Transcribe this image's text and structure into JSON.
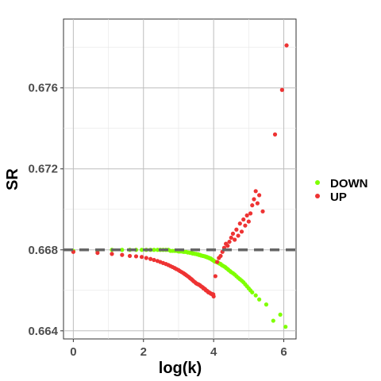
{
  "chart_data": {
    "type": "scatter",
    "xlabel": "log(k)",
    "ylabel": "SR",
    "xlim": [
      -0.28,
      6.35
    ],
    "ylim": [
      0.6636,
      0.6794
    ],
    "x_ticks": [
      0,
      2,
      4,
      6
    ],
    "x_tick_labels": [
      "0",
      "2",
      "4",
      "6"
    ],
    "y_ticks": [
      0.664,
      0.668,
      0.672,
      0.676
    ],
    "y_tick_labels": [
      "0.664",
      "0.668",
      "0.672",
      "0.676"
    ],
    "grid": true,
    "legend_position": "right",
    "reference_line": {
      "y": 0.668,
      "style": "dashed",
      "color": "#666666"
    },
    "series": [
      {
        "name": "DOWN",
        "color": "#7fff00",
        "points": [
          [
            0,
            0.66795
          ],
          [
            0.69,
            0.66795
          ],
          [
            1.1,
            0.668
          ],
          [
            1.39,
            0.668
          ],
          [
            1.61,
            0.668
          ],
          [
            1.79,
            0.668
          ],
          [
            1.95,
            0.668
          ],
          [
            2.08,
            0.668
          ],
          [
            2.2,
            0.668
          ],
          [
            2.3,
            0.668
          ],
          [
            2.4,
            0.668
          ],
          [
            2.48,
            0.668
          ],
          [
            2.56,
            0.668
          ],
          [
            2.64,
            0.668
          ],
          [
            2.71,
            0.668
          ],
          [
            2.77,
            0.66795
          ],
          [
            2.83,
            0.66795
          ],
          [
            2.89,
            0.66795
          ],
          [
            2.94,
            0.66795
          ],
          [
            3.0,
            0.66792
          ],
          [
            3.04,
            0.66792
          ],
          [
            3.09,
            0.66792
          ],
          [
            3.14,
            0.6679
          ],
          [
            3.18,
            0.6679
          ],
          [
            3.22,
            0.6679
          ],
          [
            3.26,
            0.66787
          ],
          [
            3.3,
            0.66787
          ],
          [
            3.33,
            0.66785
          ],
          [
            3.37,
            0.66785
          ],
          [
            3.4,
            0.66782
          ],
          [
            3.43,
            0.66782
          ],
          [
            3.47,
            0.6678
          ],
          [
            3.5,
            0.6678
          ],
          [
            3.53,
            0.66778
          ],
          [
            3.56,
            0.66778
          ],
          [
            3.58,
            0.66775
          ],
          [
            3.61,
            0.66775
          ],
          [
            3.64,
            0.66772
          ],
          [
            3.66,
            0.66772
          ],
          [
            3.69,
            0.6677
          ],
          [
            3.71,
            0.6677
          ],
          [
            3.74,
            0.66768
          ],
          [
            3.76,
            0.66768
          ],
          [
            3.78,
            0.66765
          ],
          [
            3.81,
            0.66765
          ],
          [
            3.83,
            0.66762
          ],
          [
            3.85,
            0.66762
          ],
          [
            3.87,
            0.6676
          ],
          [
            3.89,
            0.66758
          ],
          [
            3.91,
            0.66758
          ],
          [
            3.93,
            0.66755
          ],
          [
            3.95,
            0.66752
          ],
          [
            3.97,
            0.6675
          ],
          [
            3.99,
            0.66748
          ],
          [
            4.01,
            0.66745
          ],
          [
            4.04,
            0.66742
          ],
          [
            4.08,
            0.6674
          ],
          [
            4.11,
            0.66738
          ],
          [
            4.14,
            0.66735
          ],
          [
            4.17,
            0.66732
          ],
          [
            4.2,
            0.6673
          ],
          [
            4.23,
            0.66725
          ],
          [
            4.26,
            0.66722
          ],
          [
            4.3,
            0.66718
          ],
          [
            4.33,
            0.66715
          ],
          [
            4.36,
            0.6671
          ],
          [
            4.4,
            0.66705
          ],
          [
            4.43,
            0.667
          ],
          [
            4.47,
            0.66695
          ],
          [
            4.5,
            0.6669
          ],
          [
            4.55,
            0.66685
          ],
          [
            4.6,
            0.66678
          ],
          [
            4.65,
            0.6667
          ],
          [
            4.7,
            0.66662
          ],
          [
            4.75,
            0.66655
          ],
          [
            4.8,
            0.66648
          ],
          [
            4.85,
            0.6664
          ],
          [
            4.9,
            0.6663
          ],
          [
            4.95,
            0.6662
          ],
          [
            5.0,
            0.6661
          ],
          [
            5.05,
            0.666
          ],
          [
            5.1,
            0.6659
          ],
          [
            5.2,
            0.66575
          ],
          [
            5.3,
            0.66555
          ],
          [
            5.5,
            0.6653
          ],
          [
            5.7,
            0.6645
          ],
          [
            5.9,
            0.6648
          ],
          [
            6.05,
            0.6642
          ]
        ]
      },
      {
        "name": "UP",
        "color": "#ee3333",
        "points": [
          [
            0,
            0.6679
          ],
          [
            0.69,
            0.66785
          ],
          [
            1.1,
            0.6678
          ],
          [
            1.39,
            0.66775
          ],
          [
            1.61,
            0.6677
          ],
          [
            1.79,
            0.66768
          ],
          [
            1.95,
            0.66765
          ],
          [
            2.08,
            0.6676
          ],
          [
            2.2,
            0.66755
          ],
          [
            2.3,
            0.6675
          ],
          [
            2.4,
            0.66745
          ],
          [
            2.48,
            0.6674
          ],
          [
            2.56,
            0.66735
          ],
          [
            2.64,
            0.6673
          ],
          [
            2.71,
            0.66725
          ],
          [
            2.77,
            0.6672
          ],
          [
            2.83,
            0.66715
          ],
          [
            2.89,
            0.6671
          ],
          [
            2.94,
            0.66705
          ],
          [
            3.0,
            0.667
          ],
          [
            3.04,
            0.66695
          ],
          [
            3.09,
            0.6669
          ],
          [
            3.14,
            0.66685
          ],
          [
            3.18,
            0.6668
          ],
          [
            3.22,
            0.66675
          ],
          [
            3.26,
            0.6667
          ],
          [
            3.3,
            0.66665
          ],
          [
            3.33,
            0.6666
          ],
          [
            3.37,
            0.66655
          ],
          [
            3.4,
            0.6665
          ],
          [
            3.43,
            0.66645
          ],
          [
            3.47,
            0.6664
          ],
          [
            3.5,
            0.66635
          ],
          [
            3.53,
            0.66632
          ],
          [
            3.56,
            0.6663
          ],
          [
            3.58,
            0.66628
          ],
          [
            3.61,
            0.66625
          ],
          [
            3.64,
            0.6662
          ],
          [
            3.66,
            0.66618
          ],
          [
            3.69,
            0.66615
          ],
          [
            3.71,
            0.6661
          ],
          [
            3.74,
            0.66608
          ],
          [
            3.76,
            0.66605
          ],
          [
            3.78,
            0.666
          ],
          [
            3.81,
            0.66598
          ],
          [
            3.83,
            0.66595
          ],
          [
            3.85,
            0.6659
          ],
          [
            3.87,
            0.6659
          ],
          [
            3.89,
            0.66588
          ],
          [
            3.91,
            0.66585
          ],
          [
            3.93,
            0.66583
          ],
          [
            3.95,
            0.66582
          ],
          [
            3.97,
            0.6658
          ],
          [
            3.99,
            0.6658
          ],
          [
            4.0,
            0.6657
          ],
          [
            4.05,
            0.6667
          ],
          [
            4.1,
            0.6674
          ],
          [
            4.15,
            0.6676
          ],
          [
            4.2,
            0.6677
          ],
          [
            4.25,
            0.6679
          ],
          [
            4.3,
            0.6681
          ],
          [
            4.35,
            0.6683
          ],
          [
            4.4,
            0.6682
          ],
          [
            4.45,
            0.6684
          ],
          [
            4.5,
            0.6686
          ],
          [
            4.55,
            0.6688
          ],
          [
            4.6,
            0.6685
          ],
          [
            4.65,
            0.669
          ],
          [
            4.7,
            0.6687
          ],
          [
            4.75,
            0.6693
          ],
          [
            4.8,
            0.6689
          ],
          [
            4.85,
            0.6695
          ],
          [
            4.9,
            0.6692
          ],
          [
            4.95,
            0.6697
          ],
          [
            5.0,
            0.6694
          ],
          [
            5.05,
            0.6698
          ],
          [
            5.1,
            0.6702
          ],
          [
            5.15,
            0.6705
          ],
          [
            5.2,
            0.6709
          ],
          [
            5.25,
            0.6703
          ],
          [
            5.3,
            0.6707
          ],
          [
            5.4,
            0.6699
          ],
          [
            5.75,
            0.6737
          ],
          [
            5.95,
            0.6759
          ],
          [
            6.08,
            0.6781
          ]
        ]
      }
    ]
  }
}
